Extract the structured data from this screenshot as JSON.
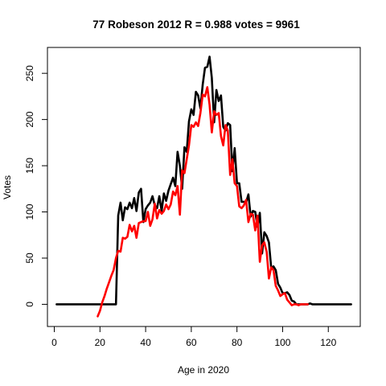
{
  "chart_data": {
    "type": "line",
    "title": "77 Robeson 2012 R = 0.988 votes = 9961",
    "xlabel": "Age in 2020",
    "ylabel": "Votes",
    "xlim": [
      -3,
      134
    ],
    "ylim": [
      -24,
      278
    ],
    "xticks": [
      0,
      20,
      40,
      60,
      80,
      100,
      120
    ],
    "yticks": [
      0,
      50,
      100,
      150,
      200,
      250
    ],
    "grid": false,
    "series": [
      {
        "color": "#000000",
        "x": [
          1,
          2,
          3,
          4,
          5,
          6,
          7,
          8,
          9,
          10,
          11,
          12,
          13,
          14,
          15,
          16,
          17,
          18,
          19,
          20,
          21,
          22,
          23,
          24,
          25,
          26,
          27,
          28,
          29,
          30,
          31,
          32,
          33,
          34,
          35,
          36,
          37,
          38,
          39,
          40,
          41,
          42,
          43,
          44,
          45,
          46,
          47,
          48,
          49,
          50,
          51,
          52,
          53,
          54,
          55,
          56,
          57,
          58,
          59,
          60,
          61,
          62,
          63,
          64,
          65,
          66,
          67,
          68,
          69,
          70,
          71,
          72,
          73,
          74,
          75,
          76,
          77,
          78,
          79,
          80,
          81,
          82,
          83,
          84,
          85,
          86,
          87,
          88,
          89,
          90,
          91,
          92,
          93,
          94,
          95,
          96,
          97,
          98,
          99,
          100,
          101,
          102,
          103,
          104,
          105,
          106,
          107,
          108,
          109,
          110,
          111,
          112,
          113,
          114,
          115,
          116,
          117,
          118,
          119,
          120,
          121,
          122,
          123,
          124,
          125,
          126,
          127,
          128,
          129,
          130
        ],
        "values": [
          0,
          0,
          0,
          0,
          0,
          0,
          0,
          0,
          0,
          0,
          0,
          0,
          0,
          0,
          0,
          0,
          0,
          0,
          0,
          0,
          0,
          0,
          0,
          0,
          0,
          0,
          0,
          96,
          110,
          91,
          105,
          103,
          110,
          104,
          115,
          101,
          121,
          125,
          89,
          103,
          107,
          110,
          117,
          107,
          104,
          117,
          101,
          120,
          112,
          123,
          130,
          137,
          128,
          165,
          150,
          125,
          170,
          165,
          198,
          211,
          205,
          230,
          226,
          212,
          238,
          256,
          257,
          268,
          245,
          197,
          232,
          220,
          226,
          192,
          188,
          196,
          194,
          144,
          169,
          131,
          131,
          111,
          111,
          110,
          119,
          95,
          101,
          100,
          84,
          99,
          55,
          78,
          74,
          67,
          39,
          41,
          37,
          22,
          18,
          12,
          12,
          13,
          10,
          4,
          3,
          0,
          0,
          0,
          0,
          0,
          0,
          1,
          0,
          0,
          0,
          0,
          0,
          0,
          0,
          0,
          0,
          0,
          0,
          0,
          0,
          0,
          0,
          0,
          0,
          0
        ]
      },
      {
        "color": "#ff0000",
        "x": [
          19,
          20,
          21,
          22,
          23,
          24,
          25,
          26,
          27,
          28,
          29,
          30,
          31,
          32,
          33,
          34,
          35,
          36,
          37,
          38,
          39,
          40,
          41,
          42,
          43,
          44,
          45,
          46,
          47,
          48,
          49,
          50,
          51,
          52,
          53,
          54,
          55,
          56,
          57,
          58,
          59,
          60,
          61,
          62,
          63,
          64,
          65,
          66,
          67,
          68,
          69,
          70,
          71,
          72,
          73,
          74,
          75,
          76,
          77,
          78,
          79,
          80,
          81,
          82,
          83,
          84,
          85,
          86,
          87,
          88,
          89,
          90,
          91,
          92,
          93,
          94,
          95,
          96,
          97,
          98,
          99,
          100,
          101,
          102,
          103,
          104,
          105,
          106,
          107,
          108,
          109,
          110,
          111
        ],
        "values": [
          -13,
          -7,
          2,
          9,
          17,
          24,
          31,
          37,
          50,
          58,
          57,
          72,
          71,
          73,
          86,
          79,
          85,
          72,
          88,
          89,
          90,
          90,
          100,
          85,
          92,
          109,
          93,
          102,
          98,
          101,
          108,
          103,
          108,
          122,
          118,
          128,
          97,
          145,
          142,
          157,
          172,
          194,
          192,
          197,
          193,
          207,
          227,
          225,
          235,
          216,
          186,
          209,
          205,
          207,
          182,
          172,
          194,
          188,
          140,
          157,
          131,
          128,
          106,
          104,
          107,
          113,
          89,
          98,
          97,
          80,
          96,
          46,
          64,
          67,
          57,
          28,
          40,
          37,
          20,
          15,
          9,
          11,
          12,
          5,
          2,
          -1,
          0,
          0,
          -1,
          0,
          0,
          0,
          0
        ]
      }
    ]
  }
}
